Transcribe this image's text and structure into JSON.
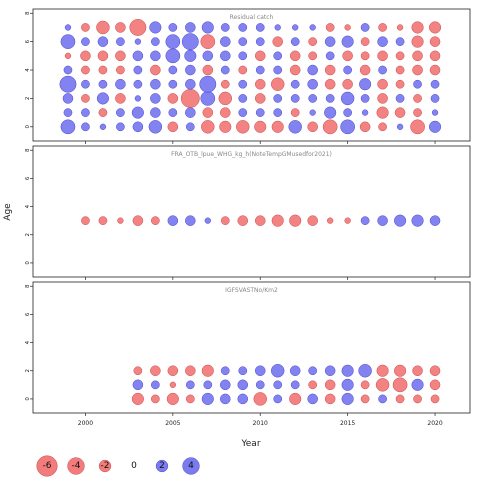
{
  "chart_data": {
    "type": "scatter",
    "xlabel": "Year",
    "ylabel": "Age",
    "x_ticks": [
      2000,
      2005,
      2010,
      2015,
      2020
    ],
    "y_ticks": [
      0,
      2,
      4,
      6,
      8
    ],
    "xlim": [
      1997,
      2022
    ],
    "legend": {
      "placement": "bottom",
      "items": [
        {
          "label": "-6",
          "value": -6
        },
        {
          "label": "-4",
          "value": -4
        },
        {
          "label": "-2",
          "value": -2
        },
        {
          "label": "0",
          "value": 0
        },
        {
          "label": "2",
          "value": 2
        },
        {
          "label": "4",
          "value": 4
        }
      ]
    },
    "colors": {
      "positive": "#7b7bf0",
      "negative": "#f27b7b",
      "positive_edge": "#4a4acc",
      "negative_edge": "#cc4a4a"
    },
    "panels": [
      {
        "title": "Residual catch",
        "ylim": [
          -1,
          8.3
        ],
        "ages": [
          0,
          1,
          2,
          3,
          4,
          5,
          6,
          7
        ],
        "years": [
          1999,
          2000,
          2001,
          2002,
          2003,
          2004,
          2005,
          2006,
          2007,
          2008,
          2009,
          2010,
          2011,
          2012,
          2013,
          2014,
          2015,
          2016,
          2017,
          2018,
          2019,
          2020
        ],
        "residuals": [
          [
            3,
            1,
            0.5,
            1,
            1.5,
            2.5,
            -1.5,
            1,
            -2.5,
            -2,
            -2.5,
            -2,
            -2,
            2.5,
            -1.5,
            -3,
            3,
            -1.5,
            -1,
            0.5,
            -3,
            2
          ],
          [
            1,
            1,
            -1,
            1,
            2,
            1.5,
            1,
            1.5,
            -1.5,
            -1.5,
            1,
            1,
            1,
            -1,
            0.5,
            2,
            1,
            0.5,
            -2,
            -1.5,
            -1,
            0.5
          ],
          [
            1.5,
            -1,
            2,
            -1.5,
            0.5,
            1.5,
            -1.5,
            -5,
            3,
            -2.5,
            1,
            -1.5,
            1,
            1,
            1,
            1,
            2.5,
            1,
            -1.5,
            1,
            -1,
            1
          ],
          [
            4,
            1,
            1,
            1.5,
            1,
            1.5,
            1,
            1.5,
            4,
            -1,
            1,
            -1.5,
            -2.5,
            1,
            1.5,
            -1.5,
            -1.5,
            2,
            -1.5,
            -1,
            1,
            1
          ],
          [
            1,
            -1,
            -1,
            -1,
            1,
            -1.5,
            1,
            1.5,
            -1.5,
            1,
            -1,
            1,
            1,
            -1.5,
            1.5,
            -1.5,
            1,
            -1.5,
            1,
            -1,
            -1.5,
            -1.5
          ],
          [
            -0.5,
            -1.5,
            -1.5,
            -1.5,
            1.5,
            1.5,
            3,
            2,
            1.5,
            1.5,
            1,
            -1.5,
            1,
            -1.5,
            -1,
            1,
            -1.5,
            -1,
            -1.5,
            -1,
            -1.5,
            -1.5
          ],
          [
            3,
            1,
            1.5,
            1,
            0.5,
            1,
            3,
            4,
            -3,
            1.5,
            1,
            1,
            -1.5,
            1,
            -1,
            1.5,
            2,
            -1,
            1.5,
            1,
            -2,
            -1.5
          ],
          [
            0.5,
            -1,
            -2.5,
            -1.5,
            -4,
            2,
            1,
            1.5,
            2,
            1,
            1,
            1,
            0.5,
            0.5,
            0.5,
            -1,
            -0.5,
            1,
            -1,
            -0.5,
            -2,
            -2
          ]
        ]
      },
      {
        "title": "FRA_OTB_lpue_WHG_kg_h(NoteTempGMusedfor2021)",
        "ylim": [
          -1,
          8.3
        ],
        "ages": [
          3
        ],
        "years": [
          2000,
          2001,
          2002,
          2003,
          2004,
          2005,
          2006,
          2007,
          2008,
          2009,
          2010,
          2011,
          2012,
          2013,
          2014,
          2015,
          2016,
          2017,
          2018,
          2019,
          2020
        ],
        "residuals": [
          [
            -1,
            -1,
            -0.5,
            -1.5,
            -1,
            1.5,
            1.5,
            0.5,
            -1,
            -1.5,
            -1.5,
            -2,
            -2,
            -1.5,
            -0.5,
            -0.5,
            1,
            1.5,
            2,
            2,
            1.5
          ]
        ]
      },
      {
        "title": "IGFSVASTNo/Km2",
        "ylim": [
          -1,
          8.3
        ],
        "ages": [
          0,
          1,
          2
        ],
        "years": [
          2003,
          2004,
          2005,
          2006,
          2007,
          2008,
          2009,
          2010,
          2011,
          2012,
          2013,
          2014,
          2015,
          2016,
          2017,
          2018,
          2019,
          2020
        ],
        "residuals": [
          [
            -2,
            -1,
            -2,
            -1,
            2,
            1.5,
            1.5,
            -2.5,
            1,
            -2,
            1.5,
            -1.5,
            2,
            -1,
            1,
            -1,
            -1,
            -1
          ],
          [
            1.5,
            1,
            -0.5,
            1,
            1,
            1.5,
            1.5,
            1,
            1,
            1,
            -1,
            -1.5,
            2,
            -1,
            -2.5,
            -3,
            2,
            -1.5
          ],
          [
            -1,
            -1.5,
            -1.5,
            -1.5,
            -2,
            1,
            1,
            1.5,
            2.5,
            1.5,
            1,
            1.5,
            2,
            2.5,
            -2,
            -2,
            -1.5,
            -1.5
          ]
        ]
      }
    ]
  }
}
